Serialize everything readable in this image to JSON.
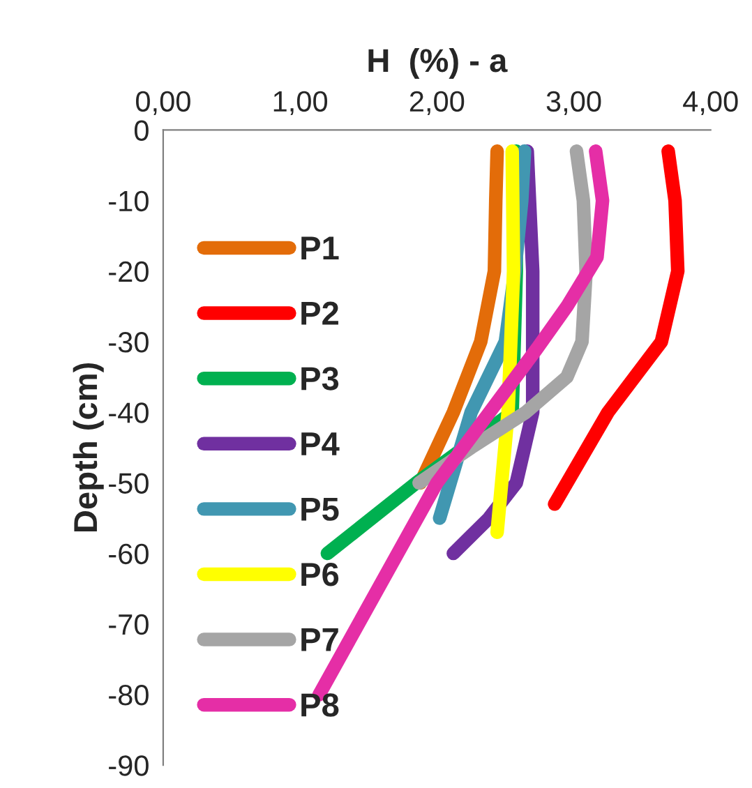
{
  "chart_data": {
    "type": "line",
    "title": "H  (%) - a",
    "ylabel": "Depth (cm)",
    "xlim": [
      0,
      4
    ],
    "xticks": [
      {
        "value": 0,
        "label": "0,00"
      },
      {
        "value": 1,
        "label": "1,00"
      },
      {
        "value": 2,
        "label": "2,00"
      },
      {
        "value": 3,
        "label": "3,00"
      },
      {
        "value": 4,
        "label": "4,00"
      }
    ],
    "ylim": [
      -90,
      0
    ],
    "yticks": [
      0,
      -10,
      -20,
      -30,
      -40,
      -50,
      -60,
      -70,
      -80,
      -90
    ],
    "grid": false,
    "legend": "left",
    "marker": "none",
    "line_style": "solid",
    "series": [
      {
        "name": "P1",
        "color": "#e36c09",
        "x": [
          2.44,
          2.43,
          2.42,
          2.32,
          2.12,
          1.88
        ],
        "values": [
          -3,
          -10,
          -20,
          -30,
          -40,
          -50
        ]
      },
      {
        "name": "P2",
        "color": "#ff0000",
        "x": [
          3.69,
          3.74,
          3.76,
          3.64,
          3.25,
          2.86
        ],
        "values": [
          -3,
          -10,
          -20,
          -30,
          -40,
          -53
        ]
      },
      {
        "name": "P3",
        "color": "#00b050",
        "x": [
          2.58,
          2.58,
          2.55,
          1.85,
          1.2
        ],
        "values": [
          -3,
          -20,
          -40,
          -50,
          -60
        ]
      },
      {
        "name": "P4",
        "color": "#7030a0",
        "x": [
          2.66,
          2.7,
          2.7,
          2.58,
          2.38,
          2.12
        ],
        "values": [
          -3,
          -20,
          -40,
          -50,
          -55,
          -60
        ]
      },
      {
        "name": "P5",
        "color": "#4197b1",
        "x": [
          2.64,
          2.62,
          2.57,
          2.5,
          2.25,
          2.02
        ],
        "values": [
          -3,
          -10,
          -20,
          -30,
          -40,
          -55
        ]
      },
      {
        "name": "P6",
        "color": "#ffff00",
        "x": [
          2.55,
          2.56,
          2.52,
          2.44
        ],
        "values": [
          -3,
          -20,
          -40,
          -57
        ]
      },
      {
        "name": "P7",
        "color": "#a5a5a5",
        "x": [
          3.02,
          3.07,
          3.09,
          3.06,
          2.95,
          2.65,
          2.25,
          1.87
        ],
        "values": [
          -3,
          -10,
          -20,
          -30,
          -35,
          -40,
          -45,
          -50
        ]
      },
      {
        "name": "P8",
        "color": "#e52ea6",
        "x": [
          3.16,
          3.21,
          3.17,
          2.95,
          2.73,
          2.0,
          1.14
        ],
        "values": [
          -3,
          -10,
          -18,
          -25,
          -31,
          -50,
          -80
        ]
      }
    ]
  }
}
